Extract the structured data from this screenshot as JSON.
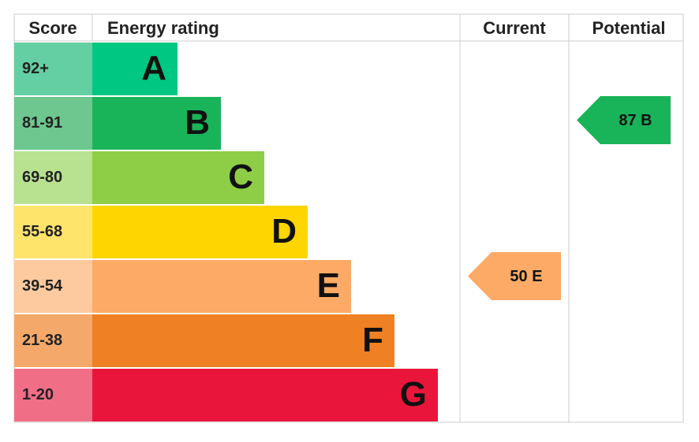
{
  "header": {
    "score": "Score",
    "rating": "Energy rating",
    "current": "Current",
    "potential": "Potential"
  },
  "bands": [
    {
      "score": "92+",
      "letter": "A",
      "color": "#00c781",
      "score_color": "#63cfa2"
    },
    {
      "score": "81-91",
      "letter": "B",
      "color": "#19b459",
      "score_color": "#6dc78f"
    },
    {
      "score": "69-80",
      "letter": "C",
      "color": "#8dce46",
      "score_color": "#b8e190"
    },
    {
      "score": "55-68",
      "letter": "D",
      "color": "#ffd500",
      "score_color": "#ffe46c"
    },
    {
      "score": "39-54",
      "letter": "E",
      "color": "#fcaa65",
      "score_color": "#fdcaa0"
    },
    {
      "score": "21-38",
      "letter": "F",
      "color": "#ef8023",
      "score_color": "#f4a96b"
    },
    {
      "score": "1-20",
      "letter": "G",
      "color": "#e9153b",
      "score_color": "#f06e86"
    }
  ],
  "current": {
    "label": "50 E",
    "color": "#fcaa65"
  },
  "potential": {
    "label": "87 B",
    "color": "#19b459"
  }
}
